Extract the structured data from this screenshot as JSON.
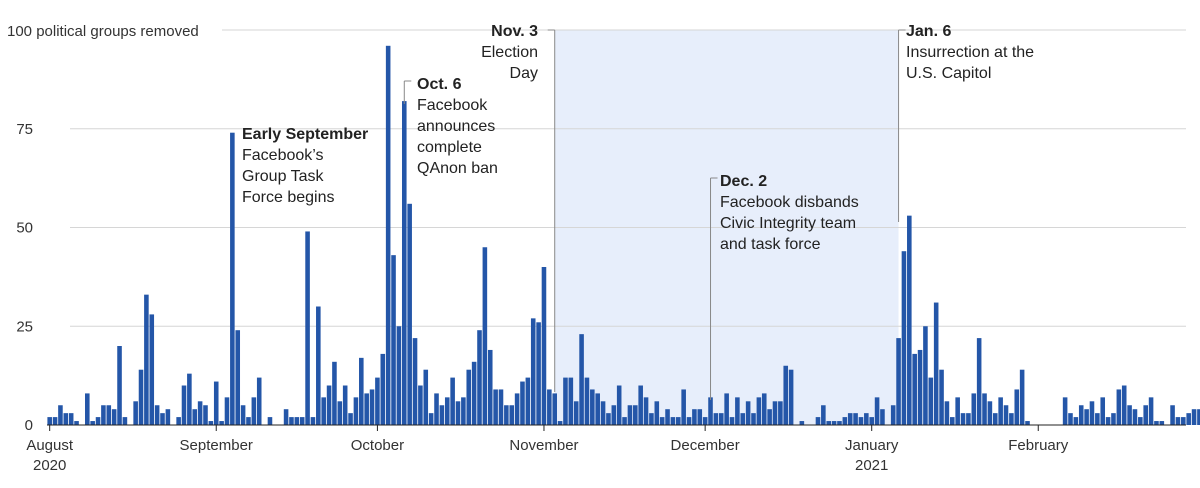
{
  "chart_data": {
    "type": "bar",
    "title": "100 political groups removed",
    "x_range": [
      "2020-08-01",
      "2021-02-28"
    ],
    "ylim": [
      0,
      100
    ],
    "y_ticks": [
      {
        "value": 100,
        "label": ""
      },
      {
        "value": 75,
        "label": "75"
      },
      {
        "value": 50,
        "label": "50"
      },
      {
        "value": 25,
        "label": "25"
      },
      {
        "value": 0,
        "label": "0"
      }
    ],
    "x_ticks": [
      {
        "date": "2020-08-01",
        "label": "August",
        "sublabel": "2020"
      },
      {
        "date": "2020-09-01",
        "label": "September",
        "sublabel": ""
      },
      {
        "date": "2020-10-01",
        "label": "October",
        "sublabel": ""
      },
      {
        "date": "2020-11-01",
        "label": "November",
        "sublabel": ""
      },
      {
        "date": "2020-12-01",
        "label": "December",
        "sublabel": ""
      },
      {
        "date": "2021-01-01",
        "label": "January",
        "sublabel": "2021"
      },
      {
        "date": "2021-02-01",
        "label": "February",
        "sublabel": ""
      }
    ],
    "shaded_range": {
      "start": "2020-11-03",
      "end": "2021-01-06"
    },
    "grid": true,
    "series": [
      {
        "color": "#2456a8",
        "start_date": "2020-08-01",
        "values": [
          2,
          2,
          5,
          3,
          3,
          1,
          0,
          8,
          1,
          2,
          5,
          5,
          4,
          20,
          2,
          0,
          6,
          14,
          33,
          28,
          5,
          3,
          4,
          0,
          2,
          10,
          13,
          4,
          6,
          5,
          1,
          11,
          1,
          7,
          74,
          24,
          5,
          2,
          7,
          12,
          0,
          2,
          0,
          0,
          4,
          2,
          2,
          2,
          49,
          2,
          30,
          7,
          10,
          16,
          6,
          10,
          3,
          7,
          17,
          8,
          9,
          12,
          18,
          96,
          43,
          25,
          82,
          56,
          22,
          10,
          14,
          3,
          8,
          5,
          7,
          12,
          6,
          7,
          14,
          16,
          24,
          45,
          19,
          9,
          9,
          5,
          5,
          8,
          11,
          12,
          27,
          26,
          40,
          9,
          8,
          1,
          12,
          12,
          6,
          23,
          12,
          9,
          8,
          6,
          3,
          5,
          10,
          2,
          5,
          5,
          10,
          7,
          3,
          6,
          2,
          4,
          2,
          2,
          9,
          2,
          4,
          4,
          2,
          7,
          3,
          3,
          8,
          2,
          7,
          3,
          6,
          3,
          7,
          8,
          4,
          6,
          6,
          15,
          14,
          0,
          1,
          0,
          0,
          2,
          5,
          1,
          1,
          1,
          2,
          3,
          3,
          2,
          3,
          2,
          7,
          4,
          0,
          5,
          22,
          44,
          53,
          18,
          19,
          25,
          12,
          31,
          14,
          6,
          2,
          7,
          3,
          3,
          8,
          22,
          8,
          6,
          3,
          7,
          5,
          3,
          9,
          14,
          1,
          0,
          0,
          0,
          0,
          0,
          0,
          7,
          3,
          2,
          5,
          4,
          6,
          3,
          7,
          2,
          3,
          9,
          10,
          5,
          4,
          2,
          5,
          7,
          1,
          1,
          0,
          5,
          2,
          2,
          3,
          4,
          4,
          5,
          5,
          1
        ]
      }
    ],
    "annotations": [
      {
        "date": "2020-09-06",
        "title": "Early September",
        "lines": [
          "Facebook’s",
          "Group Task",
          "Force begins"
        ]
      },
      {
        "date": "2020-10-06",
        "title": "Oct. 6",
        "lines": [
          "Facebook",
          "announces",
          "complete",
          "QAnon ban"
        ]
      },
      {
        "date": "2020-11-03",
        "title": "Nov. 3",
        "lines": [
          "Election",
          "Day"
        ]
      },
      {
        "date": "2020-12-02",
        "title": "Dec. 2",
        "lines": [
          "Facebook disbands",
          "Civic Integrity team",
          "and task force"
        ]
      },
      {
        "date": "2021-01-06",
        "title": "Jan. 6",
        "lines": [
          "Insurrection at the",
          "U.S. Capitol"
        ]
      }
    ]
  }
}
